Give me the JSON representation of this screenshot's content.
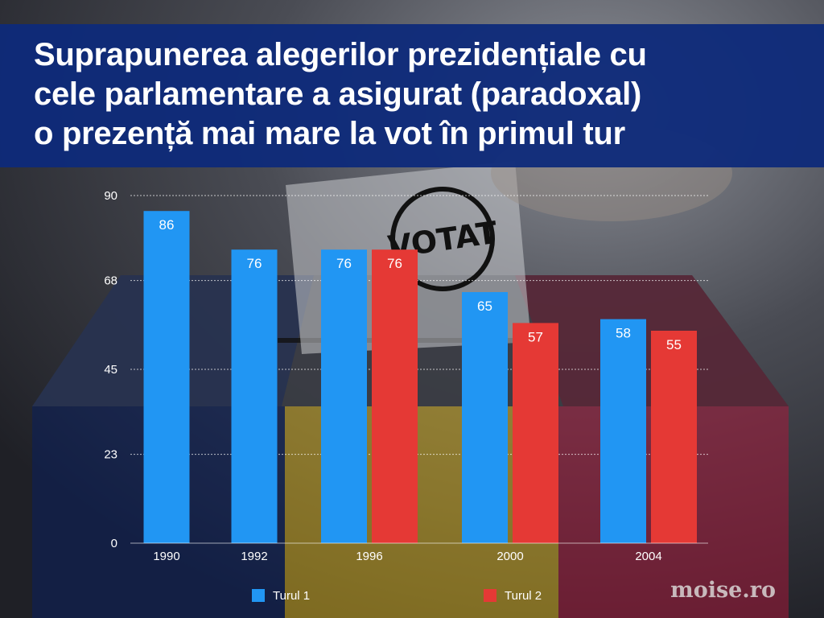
{
  "header": {
    "title_lines": [
      "Suprapunerea alegerilor prezidențiale cu",
      "cele parlamentare a asigurat (paradoxal)",
      "o prezență mai mare la vot în primul tur"
    ]
  },
  "background": {
    "stamp_text": "VOTAT",
    "flag_colors": [
      "#0a1f5c",
      "#f2c61a",
      "#b0163a"
    ]
  },
  "colors": {
    "series_1": "#2196f3",
    "series_2": "#e53935"
  },
  "brand": {
    "text": "moise.ro"
  },
  "chart_data": {
    "type": "bar",
    "categories": [
      "1990",
      "1992",
      "1996",
      "2000",
      "2004"
    ],
    "series": [
      {
        "name": "Turul 1",
        "values": [
          86,
          76,
          76,
          65,
          58
        ]
      },
      {
        "name": "Turul 2",
        "values": [
          null,
          null,
          76,
          57,
          55
        ]
      }
    ],
    "yticks": [
      0,
      23,
      45,
      68,
      90
    ],
    "ylim": [
      0,
      90
    ],
    "grid": true,
    "legend_position": "bottom",
    "title": "",
    "xlabel": "",
    "ylabel": ""
  }
}
